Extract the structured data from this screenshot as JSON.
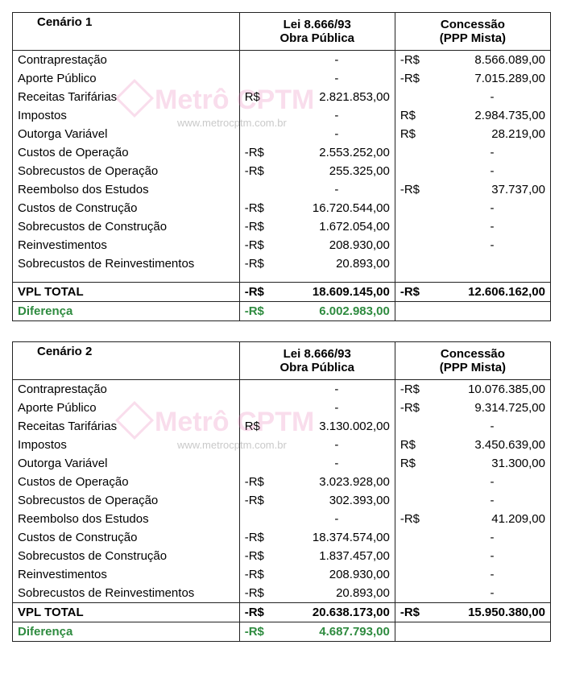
{
  "watermark": {
    "text": "Metrô CPTM",
    "url": "www.metrocptm.com.br"
  },
  "tables": [
    {
      "title": "Cenário 1",
      "col2a": "Lei 8.666/93",
      "col2b": "Obra Pública",
      "col3a": "Concessão",
      "col3b": "(PPP Mista)",
      "rows": [
        {
          "label": "Contraprestação",
          "s1": "",
          "v1": "-",
          "s2": "-R$",
          "v2": "8.566.089,00"
        },
        {
          "label": "Aporte Público",
          "s1": "",
          "v1": "-",
          "s2": "-R$",
          "v2": "7.015.289,00"
        },
        {
          "label": "Receitas Tarifárias",
          "s1": "R$",
          "v1": "2.821.853,00",
          "s2": "",
          "v2": "-"
        },
        {
          "label": "Impostos",
          "s1": "",
          "v1": "-",
          "s2": "R$",
          "v2": "2.984.735,00"
        },
        {
          "label": "Outorga Variável",
          "s1": "",
          "v1": "-",
          "s2": "R$",
          "v2": "28.219,00"
        },
        {
          "label": "Custos de Operação",
          "s1": "-R$",
          "v1": "2.553.252,00",
          "s2": "",
          "v2": "-"
        },
        {
          "label": "Sobrecustos de Operação",
          "s1": "-R$",
          "v1": "255.325,00",
          "s2": "",
          "v2": "-"
        },
        {
          "label": "Reembolso dos Estudos",
          "s1": "",
          "v1": "-",
          "s2": "-R$",
          "v2": "37.737,00"
        },
        {
          "label": "Custos de Construção",
          "s1": "-R$",
          "v1": "16.720.544,00",
          "s2": "",
          "v2": "-"
        },
        {
          "label": "Sobrecustos de Construção",
          "s1": "-R$",
          "v1": "1.672.054,00",
          "s2": "",
          "v2": "-"
        },
        {
          "label": "Reinvestimentos",
          "s1": "-R$",
          "v1": "208.930,00",
          "s2": "",
          "v2": "-"
        },
        {
          "label": "Sobrecustos de Reinvestimentos",
          "s1": "-R$",
          "v1": "20.893,00",
          "s2": "",
          "v2": "",
          "pad": true
        }
      ],
      "total": {
        "label": "VPL TOTAL",
        "s1": "-R$",
        "v1": "18.609.145,00",
        "s2": "-R$",
        "v2": "12.606.162,00"
      },
      "diff": {
        "label": "Diferença",
        "s1": "-R$",
        "v1": "6.002.983,00",
        "s2": "",
        "v2": ""
      }
    },
    {
      "title": "Cenário 2",
      "col2a": "Lei 8.666/93",
      "col2b": "Obra Pública",
      "col3a": "Concessão",
      "col3b": "(PPP Mista)",
      "rows": [
        {
          "label": "Contraprestação",
          "s1": "",
          "v1": "-",
          "s2": "-R$",
          "v2": "10.076.385,00"
        },
        {
          "label": "Aporte Público",
          "s1": "",
          "v1": "-",
          "s2": "-R$",
          "v2": "9.314.725,00"
        },
        {
          "label": "Receitas Tarifárias",
          "s1": "R$",
          "v1": "3.130.002,00",
          "s2": "",
          "v2": "-"
        },
        {
          "label": "Impostos",
          "s1": "",
          "v1": "-",
          "s2": "R$",
          "v2": "3.450.639,00"
        },
        {
          "label": "Outorga Variável",
          "s1": "",
          "v1": "-",
          "s2": "R$",
          "v2": "31.300,00"
        },
        {
          "label": "Custos de Operação",
          "s1": "-R$",
          "v1": "3.023.928,00",
          "s2": "",
          "v2": "-"
        },
        {
          "label": "Sobrecustos de Operação",
          "s1": "-R$",
          "v1": "302.393,00",
          "s2": "",
          "v2": "-"
        },
        {
          "label": "Reembolso dos Estudos",
          "s1": "",
          "v1": "-",
          "s2": "-R$",
          "v2": "41.209,00"
        },
        {
          "label": "Custos de Construção",
          "s1": "-R$",
          "v1": "18.374.574,00",
          "s2": "",
          "v2": "-"
        },
        {
          "label": "Sobrecustos de Construção",
          "s1": "-R$",
          "v1": "1.837.457,00",
          "s2": "",
          "v2": "-"
        },
        {
          "label": "Reinvestimentos",
          "s1": "-R$",
          "v1": "208.930,00",
          "s2": "",
          "v2": "-"
        },
        {
          "label": "Sobrecustos de Reinvestimentos",
          "s1": "-R$",
          "v1": "20.893,00",
          "s2": "",
          "v2": "-"
        }
      ],
      "total": {
        "label": "VPL TOTAL",
        "s1": "-R$",
        "v1": "20.638.173,00",
        "s2": "-R$",
        "v2": "15.950.380,00"
      },
      "diff": {
        "label": "Diferença",
        "s1": "-R$",
        "v1": "4.687.793,00",
        "s2": "",
        "v2": ""
      }
    }
  ]
}
